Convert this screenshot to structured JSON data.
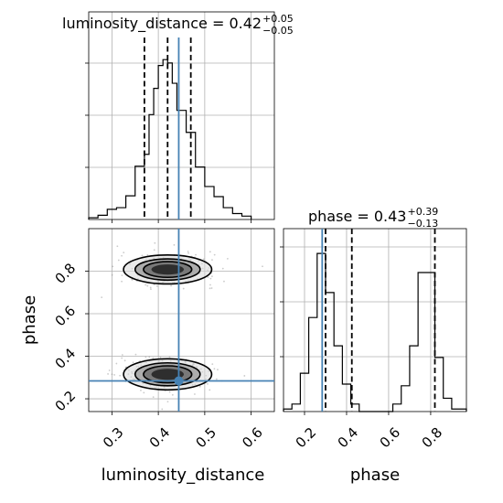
{
  "chart_data": [
    {
      "type": "histogram",
      "panel": "luminosity_distance marginal",
      "title": {
        "param": "luminosity_distance",
        "median": "0.42",
        "plus": "+0.05",
        "minus": "−0.05"
      },
      "xlim": [
        0.25,
        0.65
      ],
      "bins": [
        {
          "x0": 0.25,
          "x1": 0.27,
          "value": 0.01
        },
        {
          "x0": 0.27,
          "x1": 0.29,
          "value": 0.025
        },
        {
          "x0": 0.29,
          "x1": 0.31,
          "value": 0.06
        },
        {
          "x0": 0.31,
          "x1": 0.33,
          "value": 0.07
        },
        {
          "x0": 0.33,
          "x1": 0.35,
          "value": 0.14
        },
        {
          "x0": 0.35,
          "x1": 0.37,
          "value": 0.315
        },
        {
          "x0": 0.37,
          "x1": 0.38,
          "value": 0.385
        },
        {
          "x0": 0.38,
          "x1": 0.39,
          "value": 0.62
        },
        {
          "x0": 0.39,
          "x1": 0.4,
          "value": 0.775
        },
        {
          "x0": 0.4,
          "x1": 0.41,
          "value": 0.91
        },
        {
          "x0": 0.41,
          "x1": 0.42,
          "value": 0.945
        },
        {
          "x0": 0.42,
          "x1": 0.43,
          "value": 0.925
        },
        {
          "x0": 0.43,
          "x1": 0.44,
          "value": 0.805
        },
        {
          "x0": 0.44,
          "x1": 0.46,
          "value": 0.645
        },
        {
          "x0": 0.46,
          "x1": 0.48,
          "value": 0.515
        },
        {
          "x0": 0.48,
          "x1": 0.5,
          "value": 0.31
        },
        {
          "x0": 0.5,
          "x1": 0.52,
          "value": 0.195
        },
        {
          "x0": 0.52,
          "x1": 0.54,
          "value": 0.135
        },
        {
          "x0": 0.54,
          "x1": 0.56,
          "value": 0.07
        },
        {
          "x0": 0.56,
          "x1": 0.58,
          "value": 0.035
        },
        {
          "x0": 0.58,
          "x1": 0.6,
          "value": 0.02
        }
      ],
      "quantile_lines": [
        0.37,
        0.42,
        0.47
      ],
      "truth": 0.444,
      "grid": true
    },
    {
      "type": "scatter-contour",
      "panel": "luminosity_distance vs phase",
      "xlabel": "luminosity_distance",
      "ylabel": "phase",
      "xlim": [
        0.25,
        0.65
      ],
      "ylim": [
        0.14,
        1.0
      ],
      "x_ticks": [
        "0.3",
        "0.4",
        "0.5",
        "0.6"
      ],
      "x_tick_values": [
        0.3,
        0.4,
        0.5,
        0.6
      ],
      "y_ticks": [
        "0.2",
        "0.4",
        "0.6",
        "0.8"
      ],
      "y_tick_values": [
        0.2,
        0.4,
        0.6,
        0.8
      ],
      "modes": [
        {
          "cx": 0.42,
          "cy": 0.808,
          "rx": [
            0.095,
            0.07,
            0.052,
            0.035
          ],
          "ry": [
            0.068,
            0.05,
            0.037,
            0.024
          ]
        },
        {
          "cx": 0.42,
          "cy": 0.315,
          "rx": [
            0.095,
            0.07,
            0.052,
            0.035
          ],
          "ry": [
            0.073,
            0.054,
            0.04,
            0.026
          ]
        }
      ],
      "truth": {
        "x": 0.444,
        "y": 0.284
      },
      "grid": true
    },
    {
      "type": "histogram",
      "panel": "phase marginal",
      "title": {
        "param": "phase",
        "median": "0.43",
        "plus": "+0.39",
        "minus": "−0.13"
      },
      "xlabel": "phase",
      "xlim": [
        0.1,
        0.97
      ],
      "x_ticks": [
        "0.2",
        "0.4",
        "0.6",
        "0.8"
      ],
      "x_tick_values": [
        0.2,
        0.4,
        0.6,
        0.8
      ],
      "bins": [
        {
          "x0": 0.1,
          "x1": 0.14,
          "value": 0.015
        },
        {
          "x0": 0.14,
          "x1": 0.18,
          "value": 0.045
        },
        {
          "x0": 0.18,
          "x1": 0.22,
          "value": 0.23
        },
        {
          "x0": 0.22,
          "x1": 0.26,
          "value": 0.565
        },
        {
          "x0": 0.26,
          "x1": 0.3,
          "value": 0.95
        },
        {
          "x0": 0.3,
          "x1": 0.34,
          "value": 0.715
        },
        {
          "x0": 0.34,
          "x1": 0.38,
          "value": 0.395
        },
        {
          "x0": 0.38,
          "x1": 0.42,
          "value": 0.165
        },
        {
          "x0": 0.42,
          "x1": 0.46,
          "value": 0.045
        },
        {
          "x0": 0.46,
          "x1": 0.5,
          "value": 0.0
        },
        {
          "x0": 0.5,
          "x1": 0.54,
          "value": 0.0
        },
        {
          "x0": 0.54,
          "x1": 0.58,
          "value": 0.0
        },
        {
          "x0": 0.58,
          "x1": 0.62,
          "value": 0.0
        },
        {
          "x0": 0.62,
          "x1": 0.66,
          "value": 0.045
        },
        {
          "x0": 0.66,
          "x1": 0.7,
          "value": 0.155
        },
        {
          "x0": 0.7,
          "x1": 0.74,
          "value": 0.395
        },
        {
          "x0": 0.74,
          "x1": 0.78,
          "value": 0.835
        },
        {
          "x0": 0.78,
          "x1": 0.82,
          "value": 0.835
        },
        {
          "x0": 0.82,
          "x1": 0.86,
          "value": 0.325
        },
        {
          "x0": 0.86,
          "x1": 0.9,
          "value": 0.08
        },
        {
          "x0": 0.9,
          "x1": 0.94,
          "value": 0.015
        },
        {
          "x0": 0.94,
          "x1": 0.97,
          "value": 0.015
        }
      ],
      "quantile_lines": [
        0.3,
        0.425,
        0.82
      ],
      "truth": 0.284,
      "grid": true
    }
  ],
  "colors": {
    "truth": "#4682b4",
    "hist": "#000000",
    "grid": "#b0b0b0",
    "contour_fills": [
      "#d9d9d9",
      "#a6a6a6",
      "#737373",
      "#262626"
    ],
    "scatter": "#8c8c8c"
  }
}
